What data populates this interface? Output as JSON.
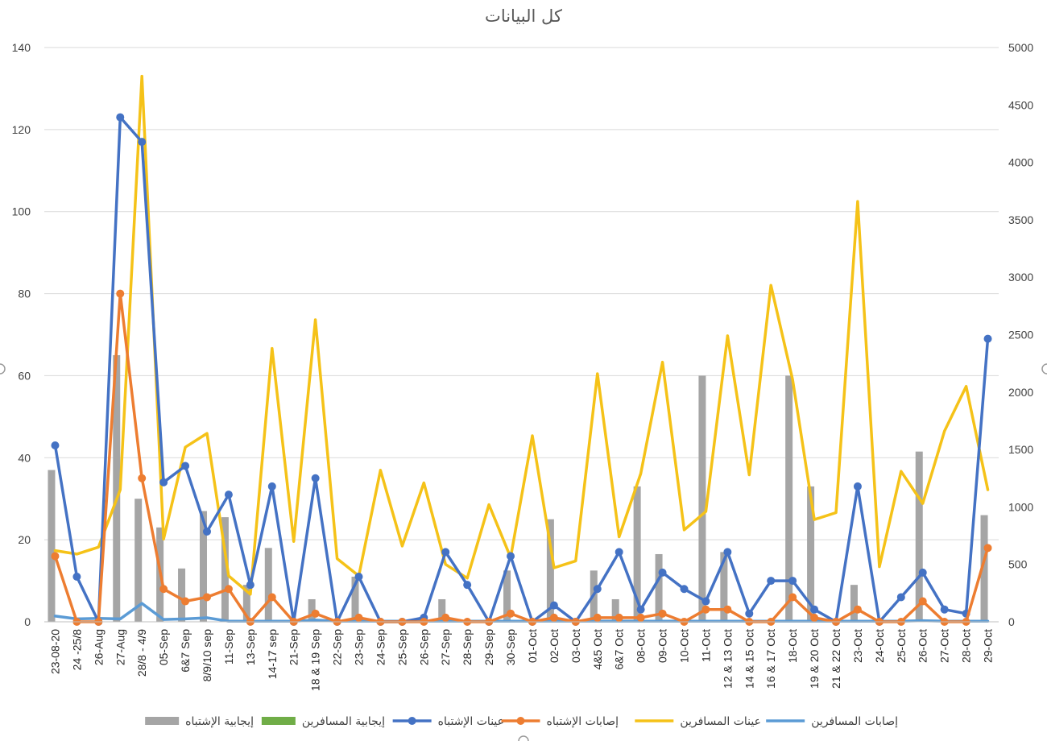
{
  "chart_data": {
    "type": "bar",
    "title": "كل البيانات",
    "categories": [
      "23-08-20",
      "24 -25/8",
      "26-Aug",
      "27-Aug",
      "28/8 - 4/9",
      "05-Sep",
      "6&7 Sep",
      "8/9/10 sep",
      "11-Sep",
      "13-Sep",
      "14-17 sep",
      "21-Sep",
      "18 & 19 Sep",
      "22-Sep",
      "23-Sep",
      "24-Sep",
      "25-Sep",
      "26-Sep",
      "27-Sep",
      "28-Sep",
      "29-Sep",
      "30-Sep",
      "01-Oct",
      "02-Oct",
      "03-Oct",
      "4&5 Oct",
      "6&7 Oct",
      "08-Oct",
      "09-Oct",
      "10-Oct",
      "11-Oct",
      "12 & 13 Oct",
      "14 & 15 Oct",
      "16 & 17 Oct",
      "18-Oct",
      "19 & 20 Oct",
      "21 & 22 Oct",
      "23-Oct",
      "24-Oct",
      "25-Oct",
      "26-Oct",
      "27-Oct",
      "28-Oct",
      "29-Oct"
    ],
    "y_left": {
      "min": 0,
      "max": 140,
      "ticks": [
        "0",
        "20",
        "40",
        "60",
        "80",
        "100",
        "120",
        "140"
      ]
    },
    "y_right": {
      "min": 0,
      "max": 5000,
      "ticks": [
        "0",
        "500",
        "1000",
        "1500",
        "2000",
        "2500",
        "3000",
        "3500",
        "4000",
        "4500",
        "5000"
      ]
    },
    "grid": true,
    "legend_position": "bottom",
    "series": [
      {
        "name": "إيجابية الإشتباه",
        "kind": "bar",
        "axis": "left",
        "color": "#a5a5a5",
        "values": [
          37,
          0,
          0,
          65,
          30,
          23,
          13,
          27,
          25.5,
          9,
          18,
          0,
          5.5,
          0,
          11,
          0,
          0,
          0,
          5.5,
          0,
          0,
          12.5,
          0,
          25,
          0,
          12.5,
          5.5,
          33,
          16.5,
          0,
          60,
          17,
          0,
          0,
          60,
          33,
          0,
          9,
          0,
          0,
          41.5,
          0,
          0,
          26
        ]
      },
      {
        "name": "إيجابية المسافرين",
        "kind": "bar",
        "axis": "left",
        "color": "#70ad47",
        "values": [
          0,
          0,
          0,
          0,
          0,
          0,
          0,
          0,
          0,
          0,
          0,
          0,
          0,
          0,
          0,
          0,
          0,
          0,
          0,
          0,
          0,
          0,
          0,
          0,
          0,
          0,
          0,
          0,
          0,
          0,
          0,
          0,
          0,
          0,
          0,
          0,
          0,
          0,
          0,
          0,
          0,
          0,
          0,
          0
        ]
      },
      {
        "name": "عينات الإشتباه",
        "kind": "line",
        "markers": true,
        "axis": "left",
        "color": "#4472c4",
        "values": [
          43,
          11,
          0,
          123,
          117,
          34,
          38,
          22,
          31,
          9,
          33,
          0,
          35,
          0,
          11,
          0,
          0,
          1,
          17,
          9,
          0,
          16,
          0,
          4,
          0,
          8,
          17,
          3,
          12,
          8,
          5,
          17,
          2,
          10,
          10,
          3,
          0,
          33,
          0,
          6,
          12,
          3,
          2,
          69
        ]
      },
      {
        "name": "إصابات الإشتباه",
        "kind": "line",
        "markers": true,
        "axis": "left",
        "color": "#ed7d31",
        "values": [
          16,
          0,
          0,
          80,
          35,
          8,
          5,
          6,
          8,
          0,
          6,
          0,
          2,
          0,
          1,
          0,
          0,
          0,
          1,
          0,
          0,
          2,
          0,
          1,
          0,
          1,
          1,
          1,
          2,
          0,
          3,
          3,
          0,
          0,
          6,
          1,
          0,
          3,
          0,
          0,
          5,
          0,
          0,
          18
        ]
      },
      {
        "name": "عينات المسافرين",
        "kind": "line",
        "markers": false,
        "axis": "right",
        "color": "#f5c218",
        "values": [
          620,
          590,
          650,
          1150,
          4750,
          720,
          1520,
          1640,
          400,
          240,
          2380,
          700,
          2630,
          550,
          400,
          1320,
          660,
          1210,
          500,
          380,
          1020,
          560,
          1620,
          470,
          530,
          2160,
          740,
          1290,
          2260,
          800,
          960,
          2490,
          1280,
          2930,
          2110,
          890,
          950,
          3660,
          480,
          1310,
          1030,
          1660,
          2050,
          1150
        ]
      },
      {
        "name": "إصابات المسافرين",
        "kind": "line",
        "markers": false,
        "axis": "right",
        "color": "#5b9bd5",
        "values": [
          50,
          25,
          30,
          25,
          160,
          20,
          25,
          35,
          5,
          5,
          5,
          5,
          15,
          5,
          5,
          5,
          5,
          5,
          5,
          5,
          5,
          5,
          5,
          5,
          5,
          5,
          5,
          5,
          5,
          5,
          5,
          5,
          5,
          5,
          5,
          5,
          5,
          5,
          5,
          5,
          10,
          5,
          5,
          5
        ]
      }
    ]
  }
}
